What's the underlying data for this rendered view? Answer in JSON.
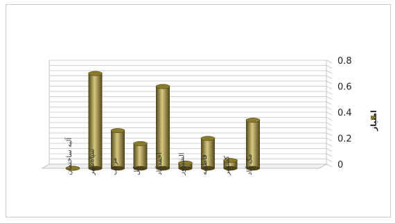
{
  "chart_data": {
    "type": "bar",
    "three_d": true,
    "grid": true,
    "legend_position": "right",
    "bar_color": "#8a7a2c",
    "bar_highlight": "#d6c981",
    "bar_shadow": "#4e4417",
    "categories": [
      "آلبه ساختمان",
      "سپاه‌شهر",
      "مرکب",
      "گل",
      "احمدآباد",
      "الشیوور",
      "فاطمیه",
      "کشمیر",
      "مک آباد"
    ],
    "series": [
      {
        "name": "امتیاز",
        "values": [
          0.0,
          0.73,
          0.29,
          0.19,
          0.63,
          0.04,
          0.23,
          0.06,
          0.37
        ]
      }
    ],
    "y_ticks": [
      "0",
      "0.2",
      "0.4",
      "0.6",
      "0.8"
    ],
    "ylim": [
      0,
      0.8
    ],
    "title": "",
    "xlabel": "",
    "ylabel": ""
  }
}
